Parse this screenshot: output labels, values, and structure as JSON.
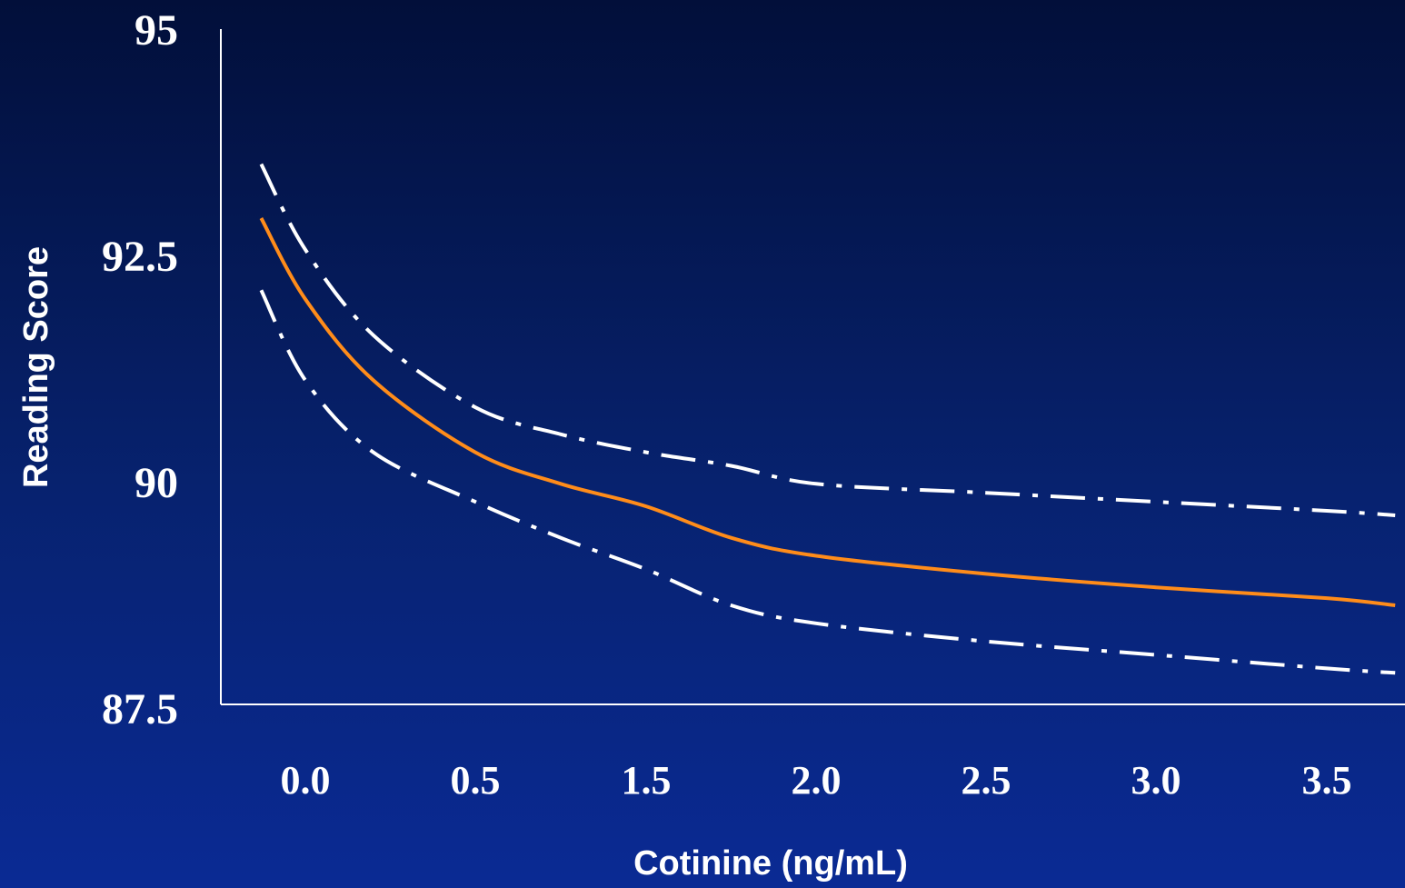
{
  "chart_data": {
    "type": "line",
    "title": "",
    "xlabel": "Cotinine (ng/mL)",
    "ylabel": "Reading Score",
    "ylim": [
      87.5,
      95
    ],
    "yticks": [
      "95",
      "92.5",
      "90",
      "87.5"
    ],
    "xticks": [
      "0.0",
      "0.5",
      "1.5",
      "2.0",
      "2.5",
      "3.0",
      "3.5"
    ],
    "x": [
      -0.13,
      0.0,
      0.2,
      0.5,
      0.75,
      1.0,
      1.5,
      2.0,
      2.5,
      3.0,
      3.5,
      3.7
    ],
    "series": [
      {
        "style": "solid",
        "color": "#ff8c1a",
        "values": [
          92.9,
          92.0,
          91.1,
          90.3,
          89.95,
          89.7,
          89.35,
          89.15,
          88.95,
          88.8,
          88.68,
          88.6
        ]
      },
      {
        "style": "dash-dot",
        "color": "#ffffff",
        "values": [
          93.5,
          92.55,
          91.6,
          90.8,
          90.5,
          90.3,
          90.15,
          89.95,
          89.85,
          89.75,
          89.65,
          89.6
        ]
      },
      {
        "style": "dash-dot",
        "color": "#ffffff",
        "values": [
          92.1,
          91.1,
          90.3,
          89.75,
          89.35,
          89.0,
          88.6,
          88.4,
          88.2,
          88.05,
          87.9,
          87.85
        ]
      }
    ],
    "grid": false,
    "legend": "none"
  },
  "colors": {
    "background_top": "#020f3a",
    "background_bottom": "#0a2a94",
    "axis": "#ffffff",
    "text": "#ffffff"
  }
}
